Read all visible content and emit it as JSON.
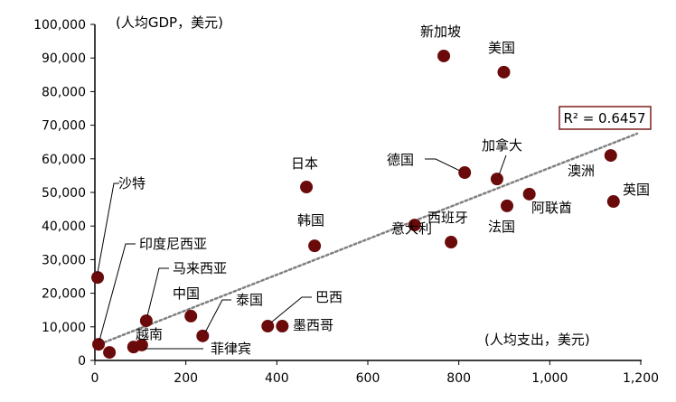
{
  "chart_data": {
    "type": "scatter",
    "title": "",
    "xlabel": "(人均支出，美元)",
    "ylabel": "(人均GDP，美元)",
    "xlim": [
      0,
      1200
    ],
    "ylim": [
      0,
      100000
    ],
    "x_ticks": [
      "0",
      "200",
      "400",
      "600",
      "800",
      "1,000",
      "1,200"
    ],
    "y_ticks": [
      "0",
      "10,000",
      "20,000",
      "30,000",
      "40,000",
      "50,000",
      "60,000",
      "70,000",
      "80,000",
      "90,000",
      "100,000"
    ],
    "grid": false,
    "marker_color": "#6b0a0a",
    "trendline": {
      "style": "dotted",
      "color": "#808080",
      "x": [
        0,
        1192
      ],
      "y": [
        4300,
        67500
      ],
      "r_squared_label": "R² = 0.6457",
      "box_border_color": "#7a1e1e"
    },
    "points": [
      {
        "label": "沙特",
        "x": 6,
        "y": 24700
      },
      {
        "label": "印度尼西亚",
        "x": 8,
        "y": 4800
      },
      {
        "label": "",
        "x": 32,
        "y": 2400
      },
      {
        "label": "越南",
        "x": 85,
        "y": 4000
      },
      {
        "label": "菲律宾",
        "x": 103,
        "y": 4600
      },
      {
        "label": "马来西亚",
        "x": 113,
        "y": 11800
      },
      {
        "label": "中国",
        "x": 211,
        "y": 13200
      },
      {
        "label": "泰国",
        "x": 237,
        "y": 7300
      },
      {
        "label": "巴西",
        "x": 380,
        "y": 10200
      },
      {
        "label": "墨西哥",
        "x": 412,
        "y": 10200
      },
      {
        "label": "日本",
        "x": 465,
        "y": 51600
      },
      {
        "label": "韩国",
        "x": 483,
        "y": 34100
      },
      {
        "label": "意大利",
        "x": 703,
        "y": 40300
      },
      {
        "label": "新加坡",
        "x": 767,
        "y": 90600
      },
      {
        "label": "西班牙",
        "x": 783,
        "y": 35200
      },
      {
        "label": "德国",
        "x": 813,
        "y": 55900
      },
      {
        "label": "加拿大",
        "x": 884,
        "y": 54000
      },
      {
        "label": "美国",
        "x": 899,
        "y": 85800
      },
      {
        "label": "法国",
        "x": 906,
        "y": 46000
      },
      {
        "label": "阿联酋",
        "x": 955,
        "y": 49500
      },
      {
        "label": "澳洲",
        "x": 1134,
        "y": 61000
      },
      {
        "label": "英国",
        "x": 1140,
        "y": 47300
      }
    ]
  }
}
